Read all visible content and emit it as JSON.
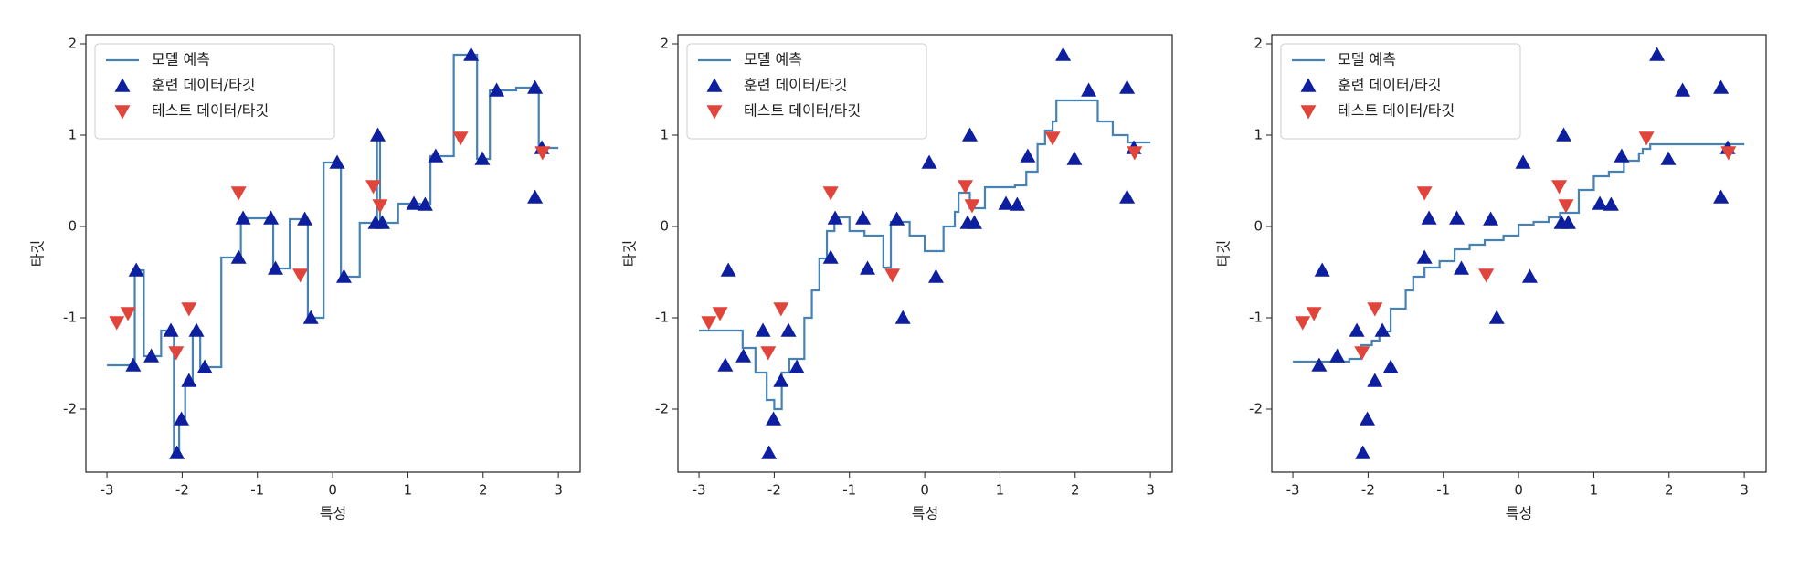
{
  "chart_data": [
    {
      "type": "line",
      "xlabel": "특성",
      "ylabel": "타깃",
      "xlim": [
        -3.28,
        3.29
      ],
      "ylim": [
        -2.69,
        2.1
      ],
      "xticks": [
        -3,
        -2,
        -1,
        0,
        1,
        2,
        3
      ],
      "yticks": [
        -2,
        -1,
        0,
        1,
        2
      ],
      "legend": "upper left",
      "series": [
        {
          "name": "모델 예측",
          "color": "#4682b4",
          "drawstyle": "steps-post",
          "x": [
            -3,
            -2.63,
            -2.51,
            -2.28,
            -2.11,
            -2.04,
            -1.96,
            -1.86,
            -1.76,
            -1.48,
            -1.22,
            -0.79,
            -0.57,
            -0.33,
            -0.12,
            0.11,
            0.36,
            0.59,
            0.63,
            0.87,
            1.16,
            1.3,
            1.61,
            1.92,
            2.09,
            2.44,
            2.74,
            3.0
          ],
          "values": [
            -1.52,
            -0.48,
            -1.42,
            -1.14,
            -2.48,
            -2.11,
            -1.69,
            -1.14,
            -1.54,
            -0.34,
            0.09,
            -0.46,
            0.08,
            -1.0,
            0.7,
            -0.55,
            0.04,
            1.0,
            0.04,
            0.25,
            0.24,
            0.77,
            1.88,
            0.74,
            1.49,
            1.52,
            0.86,
            0.86
          ]
        },
        {
          "name": "훈련 데이터/타깃",
          "color": "#0d1f9e",
          "marker": "^",
          "x": [
            -2.61,
            -2.65,
            -2.41,
            -2.15,
            -2.07,
            -2.01,
            -1.91,
            -1.81,
            -1.7,
            -1.25,
            -1.19,
            -0.82,
            -0.76,
            -0.37,
            -0.29,
            0.06,
            0.15,
            0.6,
            0.57,
            0.66,
            1.08,
            1.23,
            1.37,
            1.84,
            1.99,
            2.18,
            2.69,
            2.69,
            2.78
          ],
          "values": [
            -0.48,
            -1.52,
            -1.42,
            -1.14,
            -2.48,
            -2.11,
            -1.69,
            -1.14,
            -1.54,
            -0.34,
            0.09,
            0.09,
            -0.46,
            0.08,
            -1.0,
            0.7,
            -0.55,
            1.0,
            0.04,
            0.04,
            0.25,
            0.24,
            0.77,
            1.88,
            0.74,
            1.49,
            1.52,
            0.32,
            0.86
          ]
        },
        {
          "name": "테스트 데이터/타깃",
          "color": "#e0443a",
          "marker": "v",
          "x": [
            -2.87,
            -2.72,
            -2.08,
            -1.91,
            -1.25,
            -0.43,
            0.54,
            0.63,
            1.7,
            2.79
          ],
          "values": [
            -1.05,
            -0.95,
            -1.38,
            -0.9,
            0.37,
            -0.53,
            0.44,
            0.23,
            0.97,
            0.81
          ]
        }
      ]
    },
    {
      "type": "line",
      "xlabel": "특성",
      "ylabel": "타깃",
      "xlim": [
        -3.28,
        3.29
      ],
      "ylim": [
        -2.69,
        2.1
      ],
      "xticks": [
        -3,
        -2,
        -1,
        0,
        1,
        2,
        3
      ],
      "yticks": [
        -2,
        -1,
        0,
        1,
        2
      ],
      "legend": "upper left",
      "series": [
        {
          "name": "모델 예측",
          "color": "#4682b4",
          "drawstyle": "steps-post",
          "x": [
            -3,
            -2.42,
            -2.25,
            -2.1,
            -2.0,
            -1.9,
            -1.8,
            -1.6,
            -1.5,
            -1.4,
            -1.3,
            -1.2,
            -1.0,
            -0.8,
            -0.55,
            -0.45,
            -0.2,
            0.0,
            0.25,
            0.4,
            0.45,
            0.6,
            0.8,
            1.2,
            1.35,
            1.5,
            1.6,
            1.7,
            1.75,
            2.3,
            2.35,
            2.5,
            2.7,
            3.0
          ],
          "values": [
            -1.14,
            -1.33,
            -1.6,
            -1.9,
            -2.0,
            -1.6,
            -1.45,
            -1.0,
            -0.7,
            -0.35,
            -0.05,
            0.1,
            -0.05,
            -0.1,
            -0.45,
            0.05,
            -0.1,
            -0.27,
            0.0,
            0.16,
            0.37,
            0.2,
            0.43,
            0.45,
            0.6,
            0.9,
            1.05,
            1.15,
            1.38,
            1.15,
            1.15,
            1.0,
            0.92,
            0.92
          ]
        },
        {
          "name": "훈련 데이터/타깃",
          "color": "#0d1f9e",
          "marker": "^",
          "x": [
            -2.61,
            -2.65,
            -2.41,
            -2.15,
            -2.07,
            -2.01,
            -1.91,
            -1.81,
            -1.7,
            -1.25,
            -1.19,
            -0.82,
            -0.76,
            -0.37,
            -0.29,
            0.06,
            0.15,
            0.6,
            0.57,
            0.66,
            1.08,
            1.23,
            1.37,
            1.84,
            1.99,
            2.18,
            2.69,
            2.69,
            2.78
          ],
          "values": [
            -0.48,
            -1.52,
            -1.42,
            -1.14,
            -2.48,
            -2.11,
            -1.69,
            -1.14,
            -1.54,
            -0.34,
            0.09,
            0.09,
            -0.46,
            0.08,
            -1.0,
            0.7,
            -0.55,
            1.0,
            0.04,
            0.04,
            0.25,
            0.24,
            0.77,
            1.88,
            0.74,
            1.49,
            1.52,
            0.32,
            0.86
          ]
        },
        {
          "name": "테스트 데이터/타깃",
          "color": "#e0443a",
          "marker": "v",
          "x": [
            -2.87,
            -2.72,
            -2.08,
            -1.91,
            -1.25,
            -0.43,
            0.54,
            0.63,
            1.7,
            2.79
          ],
          "values": [
            -1.05,
            -0.95,
            -1.38,
            -0.9,
            0.37,
            -0.53,
            0.44,
            0.23,
            0.97,
            0.81
          ]
        }
      ]
    },
    {
      "type": "line",
      "xlabel": "특성",
      "ylabel": "타깃",
      "xlim": [
        -3.28,
        3.29
      ],
      "ylim": [
        -2.69,
        2.1
      ],
      "xticks": [
        -3,
        -2,
        -1,
        0,
        1,
        2,
        3
      ],
      "yticks": [
        -2,
        -1,
        0,
        1,
        2
      ],
      "legend": "upper left",
      "series": [
        {
          "name": "모델 예측",
          "color": "#4682b4",
          "drawstyle": "steps-post",
          "x": [
            -3,
            -2.25,
            -2.1,
            -1.95,
            -1.85,
            -1.7,
            -1.5,
            -1.4,
            -1.25,
            -1.05,
            -0.85,
            -0.65,
            -0.45,
            -0.2,
            0.0,
            0.2,
            0.4,
            0.55,
            0.8,
            1.0,
            1.2,
            1.4,
            1.6,
            1.65,
            1.75,
            3.0
          ],
          "values": [
            -1.48,
            -1.45,
            -1.3,
            -1.25,
            -1.15,
            -0.9,
            -0.7,
            -0.55,
            -0.45,
            -0.38,
            -0.25,
            -0.2,
            -0.15,
            -0.1,
            0.02,
            0.05,
            0.1,
            0.15,
            0.4,
            0.55,
            0.6,
            0.72,
            0.8,
            0.85,
            0.9,
            0.9
          ]
        },
        {
          "name": "훈련 데이터/타깃",
          "color": "#0d1f9e",
          "marker": "^",
          "x": [
            -2.61,
            -2.65,
            -2.41,
            -2.15,
            -2.07,
            -2.01,
            -1.91,
            -1.81,
            -1.7,
            -1.25,
            -1.19,
            -0.82,
            -0.76,
            -0.37,
            -0.29,
            0.06,
            0.15,
            0.6,
            0.57,
            0.66,
            1.08,
            1.23,
            1.37,
            1.84,
            1.99,
            2.18,
            2.69,
            2.69,
            2.78
          ],
          "values": [
            -0.48,
            -1.52,
            -1.42,
            -1.14,
            -2.48,
            -2.11,
            -1.69,
            -1.14,
            -1.54,
            -0.34,
            0.09,
            0.09,
            -0.46,
            0.08,
            -1.0,
            0.7,
            -0.55,
            1.0,
            0.04,
            0.04,
            0.25,
            0.24,
            0.77,
            1.88,
            0.74,
            1.49,
            1.52,
            0.32,
            0.86
          ]
        },
        {
          "name": "테스트 데이터/타깃",
          "color": "#e0443a",
          "marker": "v",
          "x": [
            -2.87,
            -2.72,
            -2.08,
            -1.91,
            -1.25,
            -0.43,
            0.54,
            0.63,
            1.7,
            2.79
          ],
          "values": [
            -1.05,
            -0.95,
            -1.38,
            -0.9,
            0.37,
            -0.53,
            0.44,
            0.23,
            0.97,
            0.81
          ]
        }
      ]
    }
  ]
}
